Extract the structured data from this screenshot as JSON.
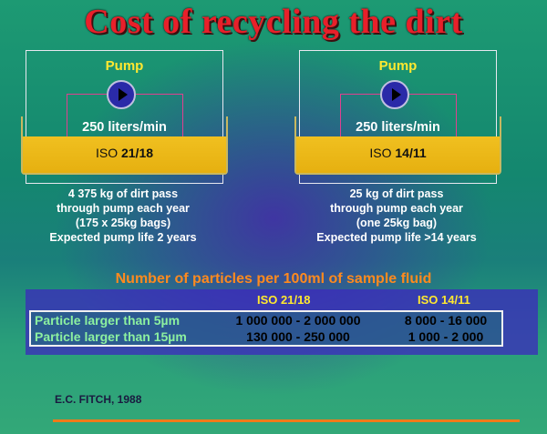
{
  "title": "Cost of recycling the dirt",
  "panels": {
    "left": {
      "pump_label": "Pump",
      "flow_rate": "250 liters/min",
      "iso_prefix": "ISO ",
      "iso_code": "21/18",
      "description": [
        "4 375 kg of dirt pass",
        "through pump each year",
        "(175 x 25kg bags)",
        "Expected pump life 2 years"
      ]
    },
    "right": {
      "pump_label": "Pump",
      "flow_rate": "250 liters/min",
      "iso_prefix": "ISO ",
      "iso_code": "14/11",
      "description": [
        "25 kg of dirt pass",
        "through pump each year",
        "(one 25kg bag)",
        "Expected pump life >14 years"
      ]
    }
  },
  "table": {
    "title": "Number of particles per 100ml of sample fluid",
    "columns": [
      "ISO 21/18",
      "ISO 14/11"
    ],
    "rows": [
      {
        "label": "Particle larger than 5µm",
        "a": "1 000 000 - 2 000 000",
        "b": "8 000 - 16 000"
      },
      {
        "label": "Particle larger than 15µm",
        "a": "130 000 - 250 000",
        "b": "1 000 - 2 000"
      }
    ]
  },
  "credit": "E.C. FITCH, 1988",
  "colors": {
    "title": "#e8202a",
    "pump_label": "#ffe830",
    "fluid": "#f0c020",
    "table_title": "#ff8a1e",
    "row_label": "#8cf0a0",
    "rule": "#f07a18"
  },
  "icons": {
    "pump": "pump-icon"
  }
}
